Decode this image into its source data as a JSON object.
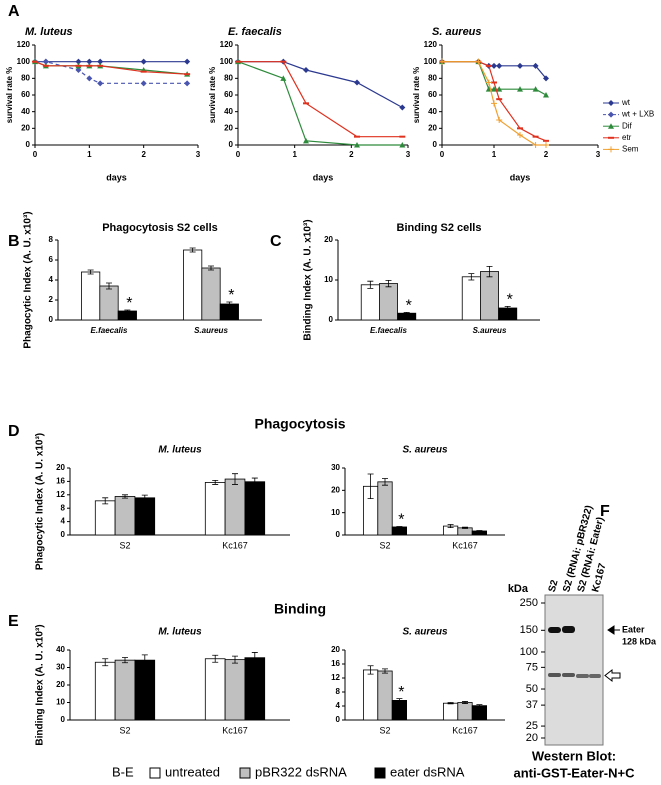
{
  "panel_labels": [
    "A",
    "B",
    "C",
    "D",
    "E",
    "F"
  ],
  "section_titles": [
    "Phagocytosis",
    "Binding"
  ],
  "chart_data": [
    {
      "type": "line",
      "title": "M. luteus",
      "x_label": "days",
      "y_label": "survival rate %",
      "x": [
        0,
        0.2,
        0.8,
        1,
        1.2,
        2,
        2.8
      ],
      "xlim": [
        0,
        3
      ],
      "xticks": [
        0,
        1,
        2,
        3
      ],
      "ylim": [
        0,
        120
      ],
      "yticks": [
        0,
        20,
        40,
        60,
        80,
        100,
        120
      ],
      "series": [
        {
          "color": "#2b3990",
          "marker": "diamond",
          "values": [
            100,
            100,
            100,
            100,
            100,
            100,
            100
          ]
        },
        {
          "color": "#4a55b0",
          "marker": "diamond",
          "dashed": true,
          "values": [
            100,
            100,
            90,
            80,
            74,
            74,
            74
          ]
        },
        {
          "color": "#2e8b3c",
          "marker": "triangle",
          "values": [
            100,
            95,
            95,
            95,
            95,
            90,
            85
          ]
        },
        {
          "color": "#e0301e",
          "marker": "dash",
          "values": [
            100,
            95,
            95,
            95,
            95,
            88,
            85
          ]
        }
      ]
    },
    {
      "type": "line",
      "title": "E. faecalis",
      "x_label": "days",
      "y_label": "survival rate %",
      "x": [
        0,
        0.8,
        1.2,
        2.1,
        2.9
      ],
      "xlim": [
        0,
        3
      ],
      "xticks": [
        0,
        1,
        2,
        3
      ],
      "ylim": [
        0,
        120
      ],
      "yticks": [
        0,
        20,
        40,
        60,
        80,
        100,
        120
      ],
      "series": [
        {
          "color": "#2b3990",
          "marker": "diamond",
          "values": [
            100,
            100,
            90,
            75,
            45
          ]
        },
        {
          "color": "#2e8b3c",
          "marker": "triangle",
          "values": [
            100,
            80,
            5,
            0,
            0
          ]
        },
        {
          "color": "#e0301e",
          "marker": "dash",
          "values": [
            100,
            100,
            50,
            10,
            10
          ]
        }
      ]
    },
    {
      "type": "line",
      "title": "S. aureus",
      "x_label": "days",
      "y_label": "survival rate %",
      "legend": true,
      "x": [
        0,
        0.7,
        0.9,
        1,
        1.1,
        1.5,
        1.8,
        2
      ],
      "xlim": [
        0,
        3
      ],
      "xticks": [
        0,
        1,
        2,
        3
      ],
      "ylim": [
        0,
        120
      ],
      "yticks": [
        0,
        20,
        40,
        60,
        80,
        100,
        120
      ],
      "series": [
        {
          "name": "wt",
          "color": "#2b3990",
          "marker": "diamond",
          "values": [
            100,
            100,
            95,
            95,
            95,
            95,
            95,
            80
          ]
        },
        {
          "name": "wt + LXB",
          "color": "#4a55b0",
          "marker": "diamond",
          "dashed": true,
          "values": [
            null,
            null,
            null,
            null,
            null,
            null,
            null,
            null
          ]
        },
        {
          "name": "Dif",
          "color": "#2e8b3c",
          "marker": "triangle",
          "values": [
            100,
            100,
            67,
            67,
            67,
            67,
            67,
            60
          ]
        },
        {
          "name": "etr",
          "color": "#e0301e",
          "marker": "dash",
          "values": [
            100,
            100,
            95,
            75,
            55,
            20,
            10,
            5
          ]
        },
        {
          "name": "Sem",
          "color": "#f0a030",
          "marker": "plus",
          "values": [
            100,
            100,
            75,
            50,
            30,
            12,
            0,
            0
          ]
        }
      ]
    },
    {
      "type": "bar",
      "title": "Phagocytosis S2 cells",
      "y_label": "Phagocytic Index (A. U. x10³)",
      "categories": [
        "E.faecalis",
        "S.aureus"
      ],
      "ylim": [
        0,
        8
      ],
      "yticks": [
        0,
        2,
        4,
        6,
        8
      ],
      "series": [
        {
          "values": [
            4.8,
            7.0
          ],
          "errors": [
            0.2,
            0.2
          ]
        },
        {
          "values": [
            3.4,
            5.2
          ],
          "errors": [
            0.3,
            0.2
          ]
        },
        {
          "values": [
            0.9,
            1.6
          ],
          "errors": [
            0.1,
            0.2
          ],
          "significance": [
            "*",
            "*"
          ]
        }
      ]
    },
    {
      "type": "bar",
      "title": "Binding  S2 cells",
      "y_label": "Binding Index (A. U. x10³)",
      "categories": [
        "E.faecalis",
        "S.aureus"
      ],
      "ylim": [
        0,
        20
      ],
      "yticks": [
        0,
        10,
        20
      ],
      "series": [
        {
          "values": [
            8.8,
            10.8
          ],
          "errors": [
            0.9,
            0.8
          ]
        },
        {
          "values": [
            9.1,
            12.1
          ],
          "errors": [
            0.8,
            1.3
          ]
        },
        {
          "values": [
            1.7,
            3.0
          ],
          "errors": [
            0.2,
            0.4
          ],
          "significance": [
            "*",
            "*"
          ]
        }
      ]
    },
    {
      "type": "bar",
      "title": "M. luteus",
      "y_label": "Phagocytic Index (A. U. x10³)",
      "categories": [
        "S2",
        "Kc167"
      ],
      "ylim": [
        0,
        20
      ],
      "yticks": [
        0,
        4,
        8,
        12,
        16,
        20
      ],
      "series": [
        {
          "values": [
            10.2,
            15.7
          ],
          "errors": [
            0.9,
            0.6
          ]
        },
        {
          "values": [
            11.5,
            16.7
          ],
          "errors": [
            0.5,
            1.6
          ]
        },
        {
          "values": [
            11.1,
            15.9
          ],
          "errors": [
            0.8,
            1.1
          ]
        }
      ]
    },
    {
      "type": "bar",
      "title": "S. aureus",
      "categories": [
        "S2",
        "Kc167"
      ],
      "ylim": [
        0,
        30
      ],
      "yticks": [
        0,
        10,
        20,
        30
      ],
      "series": [
        {
          "values": [
            21.8,
            4.0
          ],
          "errors": [
            5.5,
            0.7
          ]
        },
        {
          "values": [
            23.8,
            3.2
          ],
          "errors": [
            1.5,
            0.3
          ]
        },
        {
          "values": [
            3.6,
            1.8
          ],
          "errors": [
            0.2,
            0.2
          ],
          "significance": [
            "*",
            null
          ]
        }
      ]
    },
    {
      "type": "bar",
      "title": "M. luteus",
      "y_label": "Binding Index (A. U. x10³)",
      "categories": [
        "S2",
        "Kc167"
      ],
      "ylim": [
        0,
        40
      ],
      "yticks": [
        0,
        10,
        20,
        30,
        40
      ],
      "series": [
        {
          "values": [
            33,
            35
          ],
          "errors": [
            2,
            2
          ]
        },
        {
          "values": [
            34.2,
            34.5
          ],
          "errors": [
            1.5,
            2
          ]
        },
        {
          "values": [
            34.2,
            35.6
          ],
          "errors": [
            3,
            3
          ]
        }
      ]
    },
    {
      "type": "bar",
      "title": "S. aureus",
      "categories": [
        "S2",
        "Kc167"
      ],
      "ylim": [
        0,
        20
      ],
      "yticks": [
        0,
        4,
        8,
        12,
        16,
        20
      ],
      "series": [
        {
          "values": [
            14.3,
            4.8
          ],
          "errors": [
            1.2,
            0.2
          ]
        },
        {
          "values": [
            14.0,
            5.0
          ],
          "errors": [
            0.6,
            0.3
          ]
        },
        {
          "values": [
            5.6,
            4.1
          ],
          "errors": [
            0.5,
            0.3
          ],
          "significance": [
            "*",
            null
          ]
        }
      ]
    }
  ],
  "shared_legend": {
    "title": "B-E",
    "series": [
      {
        "name": "untreated",
        "color": "#ffffff"
      },
      {
        "name": "pBR322 dsRNA",
        "color": "#c0c0c0"
      },
      {
        "name": "eater dsRNA",
        "color": "#000000"
      }
    ]
  },
  "blot": {
    "unit": "kDa",
    "lanes": [
      "S2",
      "S2 (RNAi: pBR322)",
      "S2 (RNAi: Eater)",
      "Kc167"
    ],
    "markers": [
      250,
      150,
      100,
      75,
      50,
      37,
      25,
      20
    ],
    "band_name": "Eater",
    "band_size": "128 kDa",
    "caption": [
      "Western Blot:",
      "anti-GST-Eater-N+C"
    ]
  }
}
